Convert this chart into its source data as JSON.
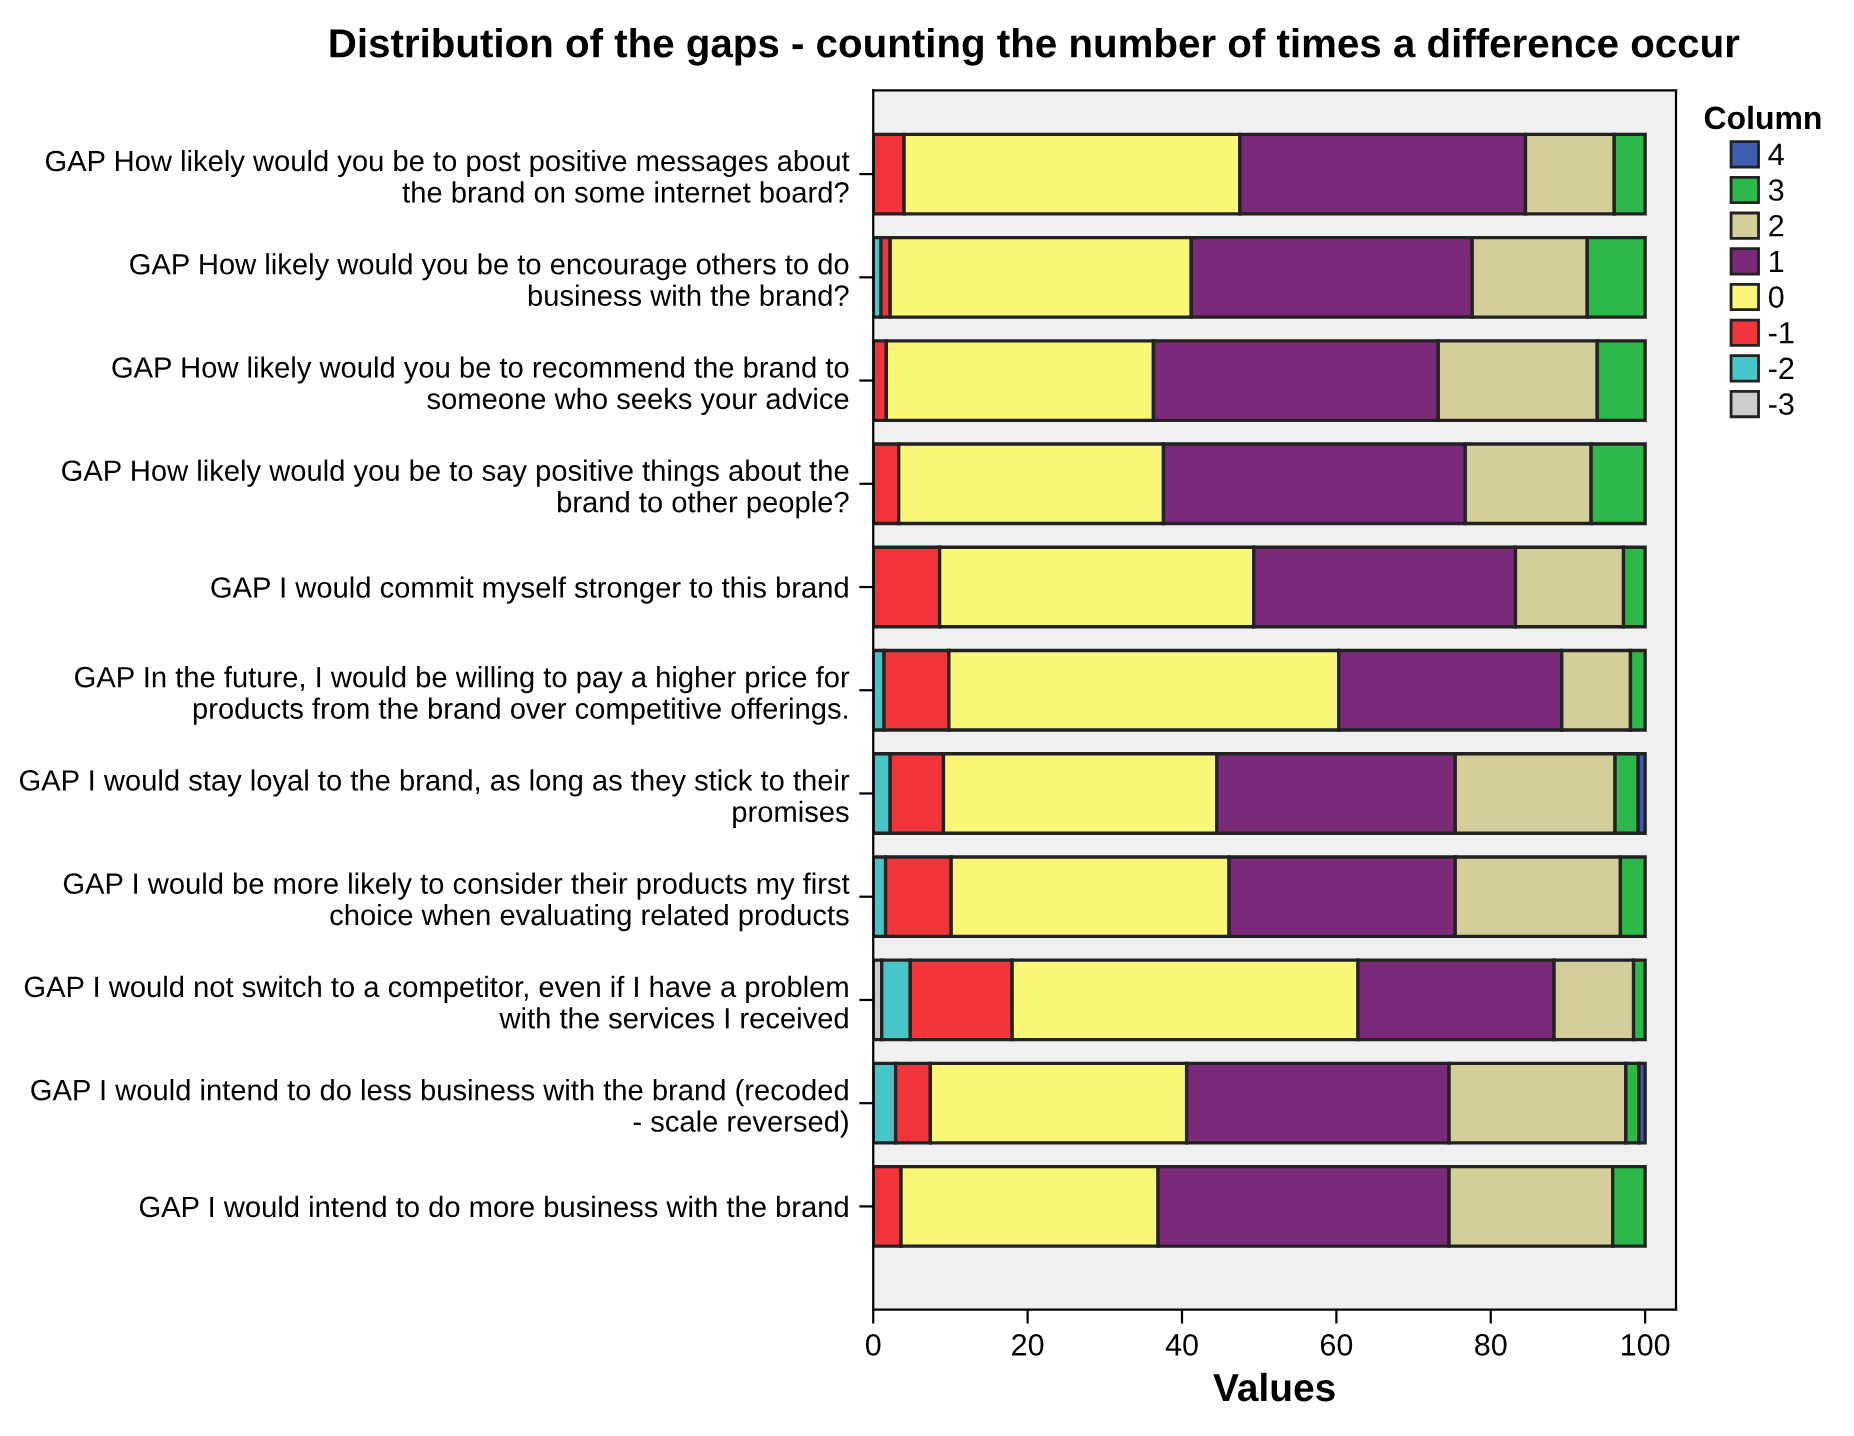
{
  "chart_data": {
    "type": "bar",
    "orientation": "horizontal",
    "stacked": true,
    "title": "Distribution of the gaps - counting the number of times a difference occur",
    "xlabel": "Values",
    "legend_title": "Column",
    "legend": "top right",
    "grid": false,
    "xlim": [
      0,
      104
    ],
    "xticks": [
      0,
      20,
      40,
      60,
      80,
      100
    ],
    "categories": [
      "GAP How likely would you be to post positive messages about\nthe brand on some internet board?",
      "GAP How likely would you be to encourage others to do\nbusiness with the brand?",
      "GAP How likely would you be to recommend the brand to\nsomeone who seeks your advice",
      "GAP How likely would you be to say positive things about the\nbrand to other people?",
      "GAP I would commit myself stronger to this brand",
      "GAP In the future, I would be willing to pay a higher price for\nproducts from the brand over competitive offerings.",
      "GAP I would stay loyal to the brand, as long as they stick to their\npromises",
      "GAP I would be more likely to consider their products my first\nchoice when evaluating related products",
      "GAP I would not switch to a competitor, even if I have a problem\nwith the services I received",
      "GAP I would intend to do less business with the brand (recoded\n- scale reversed)",
      "GAP I would intend to do more business with the brand"
    ],
    "series": [
      {
        "name": "-3",
        "color": "#cccccc",
        "values": [
          null,
          null,
          null,
          null,
          null,
          null,
          null,
          null,
          1.1,
          null,
          null
        ]
      },
      {
        "name": "-2",
        "color": "#47c5c9",
        "values": [
          null,
          1.0,
          null,
          null,
          null,
          1.4,
          2.2,
          1.6,
          3.7,
          2.9,
          null
        ]
      },
      {
        "name": "-1",
        "color": "#f2343b",
        "values": [
          4.0,
          1.2,
          1.7,
          3.3,
          8.6,
          8.4,
          6.9,
          8.5,
          13.2,
          4.5,
          3.6
        ]
      },
      {
        "name": "0",
        "color": "#faf678",
        "values": [
          43.5,
          39.0,
          34.6,
          34.3,
          40.7,
          50.5,
          35.4,
          36.0,
          44.8,
          33.2,
          33.3
        ]
      },
      {
        "name": "1",
        "color": "#7b2a7a",
        "values": [
          37.0,
          36.4,
          36.9,
          39.1,
          33.9,
          28.9,
          30.9,
          29.3,
          25.4,
          34.0,
          37.7
        ]
      },
      {
        "name": "2",
        "color": "#d4ce9a",
        "values": [
          11.5,
          14.9,
          20.6,
          16.3,
          14.0,
          8.9,
          20.7,
          21.4,
          10.3,
          22.9,
          21.2
        ]
      },
      {
        "name": "3",
        "color": "#2db84a",
        "values": [
          4.0,
          7.5,
          6.2,
          7.0,
          2.8,
          1.9,
          3.0,
          3.2,
          1.5,
          1.7,
          4.2
        ]
      },
      {
        "name": "4",
        "color": "#3e5db0",
        "values": [
          null,
          null,
          null,
          null,
          null,
          null,
          0.9,
          null,
          null,
          0.8,
          null
        ]
      }
    ]
  }
}
